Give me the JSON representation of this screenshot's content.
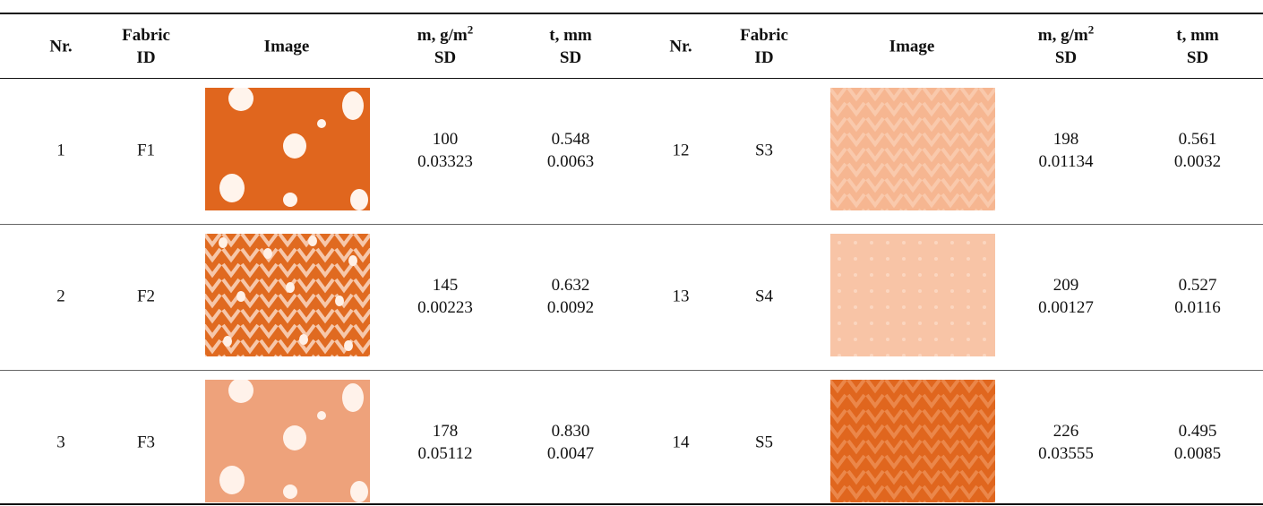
{
  "table": {
    "header": [
      {
        "text": "Nr."
      },
      {
        "text": "Fabric",
        "second": "ID"
      },
      {
        "text": "Image"
      },
      {
        "text": "m, g/m",
        "sup": "2",
        "second": "SD"
      },
      {
        "text": "t, mm",
        "second": "SD"
      },
      {
        "text": "Nr."
      },
      {
        "text": "Fabric",
        "second": "ID"
      },
      {
        "text": "Image"
      },
      {
        "text": "m, g/m",
        "sup": "2",
        "second": "SD"
      },
      {
        "text": "t, mm",
        "second": "SD"
      }
    ],
    "rows": [
      {
        "left": {
          "nr": "1",
          "id": "F1",
          "m": "100",
          "m_sd": "0.03323",
          "t": "0.548",
          "t_sd": "0.0063"
        },
        "right": {
          "nr": "12",
          "id": "S3",
          "m": "198",
          "m_sd": "0.01134",
          "t": "0.561",
          "t_sd": "0.0032"
        }
      },
      {
        "left": {
          "nr": "2",
          "id": "F2",
          "m": "145",
          "m_sd": "0.00223",
          "t": "0.632",
          "t_sd": "0.0092"
        },
        "right": {
          "nr": "13",
          "id": "S4",
          "m": "209",
          "m_sd": "0.00127",
          "t": "0.527",
          "t_sd": "0.0116"
        }
      },
      {
        "left": {
          "nr": "3",
          "id": "F3",
          "m": "178",
          "m_sd": "0.05112",
          "t": "0.830",
          "t_sd": "0.0047"
        },
        "right": {
          "nr": "14",
          "id": "S5",
          "m": "226",
          "m_sd": "0.03555",
          "t": "0.495",
          "t_sd": "0.0085"
        }
      }
    ]
  }
}
